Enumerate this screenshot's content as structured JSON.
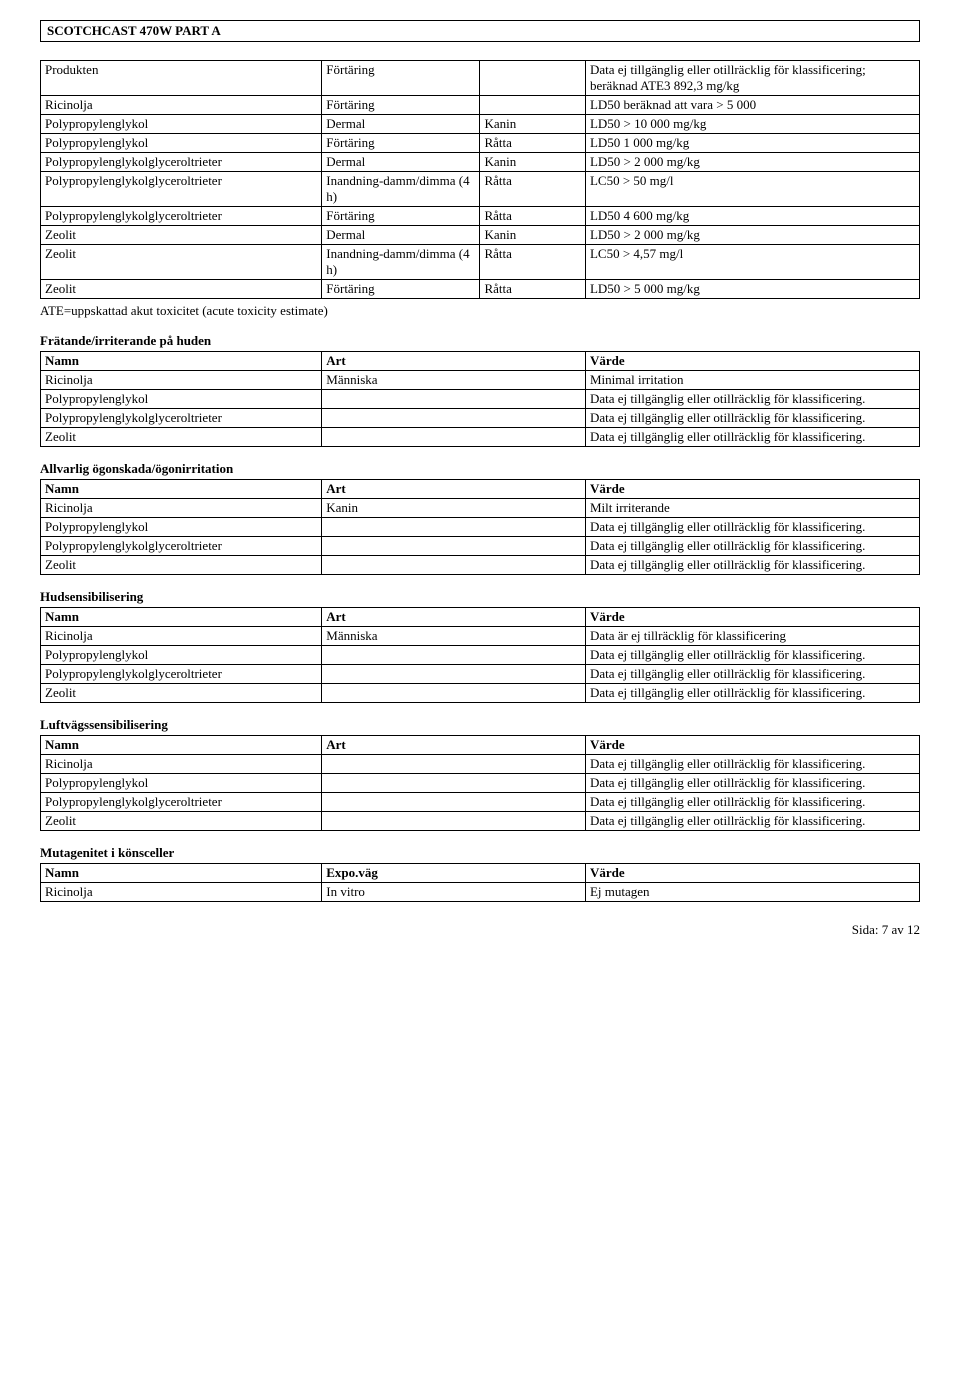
{
  "header": {
    "title": "SCOTCHCAST 470W  PART A"
  },
  "tox_table": {
    "rows": [
      [
        "Produkten",
        "Förtäring",
        "",
        "Data ej tillgänglig eller otillräcklig för klassificering; beräknad ATE3 892,3 mg/kg"
      ],
      [
        "Ricinolja",
        "Förtäring",
        "",
        "LD50 beräknad att vara > 5 000"
      ],
      [
        "Polypropylenglykol",
        "Dermal",
        "Kanin",
        "LD50 > 10 000 mg/kg"
      ],
      [
        "Polypropylenglykol",
        "Förtäring",
        "Råtta",
        "LD50  1 000 mg/kg"
      ],
      [
        "Polypropylenglykolglyceroltrieter",
        "Dermal",
        "Kanin",
        "LD50 > 2 000 mg/kg"
      ],
      [
        "Polypropylenglykolglyceroltrieter",
        "Inandning-damm/dimma (4 h)",
        "Råtta",
        "LC50 > 50 mg/l"
      ],
      [
        "Polypropylenglykolglyceroltrieter",
        "Förtäring",
        "Råtta",
        "LD50  4 600 mg/kg"
      ],
      [
        "Zeolit",
        "Dermal",
        "Kanin",
        "LD50 > 2 000 mg/kg"
      ],
      [
        "Zeolit",
        "Inandning-damm/dimma (4 h)",
        "Råtta",
        "LC50 > 4,57 mg/l"
      ],
      [
        "Zeolit",
        "Förtäring",
        "Råtta",
        "LD50 > 5 000 mg/kg"
      ]
    ],
    "note": "ATE=uppskattad akut toxicitet (acute toxicity estimate)"
  },
  "sections": [
    {
      "title": "Frätande/irriterande på huden",
      "headers": [
        "Namn",
        "Art",
        "Värde"
      ],
      "rows": [
        [
          "Ricinolja",
          "Människa",
          "Minimal irritation"
        ],
        [
          "Polypropylenglykol",
          "",
          "Data ej tillgänglig eller otillräcklig för klassificering."
        ],
        [
          "Polypropylenglykolglyceroltrieter",
          "",
          "Data ej tillgänglig eller otillräcklig för klassificering."
        ],
        [
          "Zeolit",
          "",
          "Data ej tillgänglig eller otillräcklig för klassificering."
        ]
      ]
    },
    {
      "title": "Allvarlig ögonskada/ögonirritation",
      "headers": [
        "Namn",
        "Art",
        "Värde"
      ],
      "rows": [
        [
          "Ricinolja",
          "Kanin",
          "Milt irriterande"
        ],
        [
          "Polypropylenglykol",
          "",
          "Data ej tillgänglig eller otillräcklig för klassificering."
        ],
        [
          "Polypropylenglykolglyceroltrieter",
          "",
          "Data ej tillgänglig eller otillräcklig för klassificering."
        ],
        [
          "Zeolit",
          "",
          "Data ej tillgänglig eller otillräcklig för klassificering."
        ]
      ]
    },
    {
      "title": "Hudsensibilisering",
      "headers": [
        "Namn",
        "Art",
        "Värde"
      ],
      "rows": [
        [
          "Ricinolja",
          "Människa",
          "Data är ej tillräcklig för klassificering"
        ],
        [
          "Polypropylenglykol",
          "",
          "Data ej tillgänglig eller otillräcklig för klassificering."
        ],
        [
          "Polypropylenglykolglyceroltrieter",
          "",
          "Data ej tillgänglig eller otillräcklig för klassificering."
        ],
        [
          "Zeolit",
          "",
          "Data ej tillgänglig eller otillräcklig för klassificering."
        ]
      ]
    },
    {
      "title": "Luftvägssensibilisering",
      "headers": [
        "Namn",
        "Art",
        "Värde"
      ],
      "rows": [
        [
          "Ricinolja",
          "",
          "Data ej tillgänglig eller otillräcklig för klassificering."
        ],
        [
          "Polypropylenglykol",
          "",
          "Data ej tillgänglig eller otillräcklig för klassificering."
        ],
        [
          "Polypropylenglykolglyceroltrieter",
          "",
          "Data ej tillgänglig eller otillräcklig för klassificering."
        ],
        [
          "Zeolit",
          "",
          "Data ej tillgänglig eller otillräcklig för klassificering."
        ]
      ]
    },
    {
      "title": "Mutagenitet i könsceller",
      "headers": [
        "Namn",
        "Expo.väg",
        "Värde"
      ],
      "rows": [
        [
          "Ricinolja",
          "In vitro",
          "Ej mutagen"
        ]
      ]
    }
  ],
  "footer": {
    "text": "Sida: 7 av  12"
  }
}
